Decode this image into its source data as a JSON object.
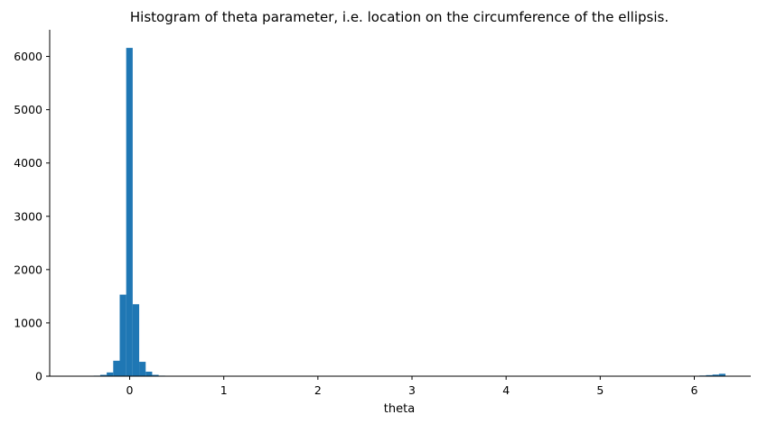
{
  "chart_data": {
    "type": "bar",
    "subtype": "histogram",
    "title": "Histogram of theta parameter, i.e. location on the circumference of the ellipsis.",
    "xlabel": "theta",
    "ylabel": "",
    "xlim": [
      -0.85,
      6.6
    ],
    "ylim": [
      0,
      6500
    ],
    "xticks": [
      0,
      1,
      2,
      3,
      4,
      5,
      6
    ],
    "yticks": [
      0,
      1000,
      2000,
      3000,
      4000,
      5000,
      6000
    ],
    "bin_width": 0.069,
    "bins": [
      {
        "x0": -0.52,
        "x1": -0.451,
        "value": 8
      },
      {
        "x0": -0.451,
        "x1": -0.382,
        "value": 0
      },
      {
        "x0": -0.382,
        "x1": -0.313,
        "value": 10
      },
      {
        "x0": -0.313,
        "x1": -0.244,
        "value": 25
      },
      {
        "x0": -0.244,
        "x1": -0.175,
        "value": 70
      },
      {
        "x0": -0.175,
        "x1": -0.106,
        "value": 290
      },
      {
        "x0": -0.106,
        "x1": -0.037,
        "value": 1530
      },
      {
        "x0": -0.037,
        "x1": 0.032,
        "value": 6160
      },
      {
        "x0": 0.032,
        "x1": 0.101,
        "value": 1350
      },
      {
        "x0": 0.101,
        "x1": 0.17,
        "value": 270
      },
      {
        "x0": 0.17,
        "x1": 0.239,
        "value": 85
      },
      {
        "x0": 0.239,
        "x1": 0.308,
        "value": 25
      },
      {
        "x0": 0.308,
        "x1": 0.377,
        "value": 10
      },
      {
        "x0": 0.377,
        "x1": 0.446,
        "value": 5
      },
      {
        "x0": 5.986,
        "x1": 6.055,
        "value": 8
      },
      {
        "x0": 6.055,
        "x1": 6.124,
        "value": 12
      },
      {
        "x0": 6.124,
        "x1": 6.193,
        "value": 20
      },
      {
        "x0": 6.193,
        "x1": 6.262,
        "value": 30
      },
      {
        "x0": 6.262,
        "x1": 6.331,
        "value": 45
      }
    ],
    "grid": false,
    "color": "#1f77b4"
  }
}
